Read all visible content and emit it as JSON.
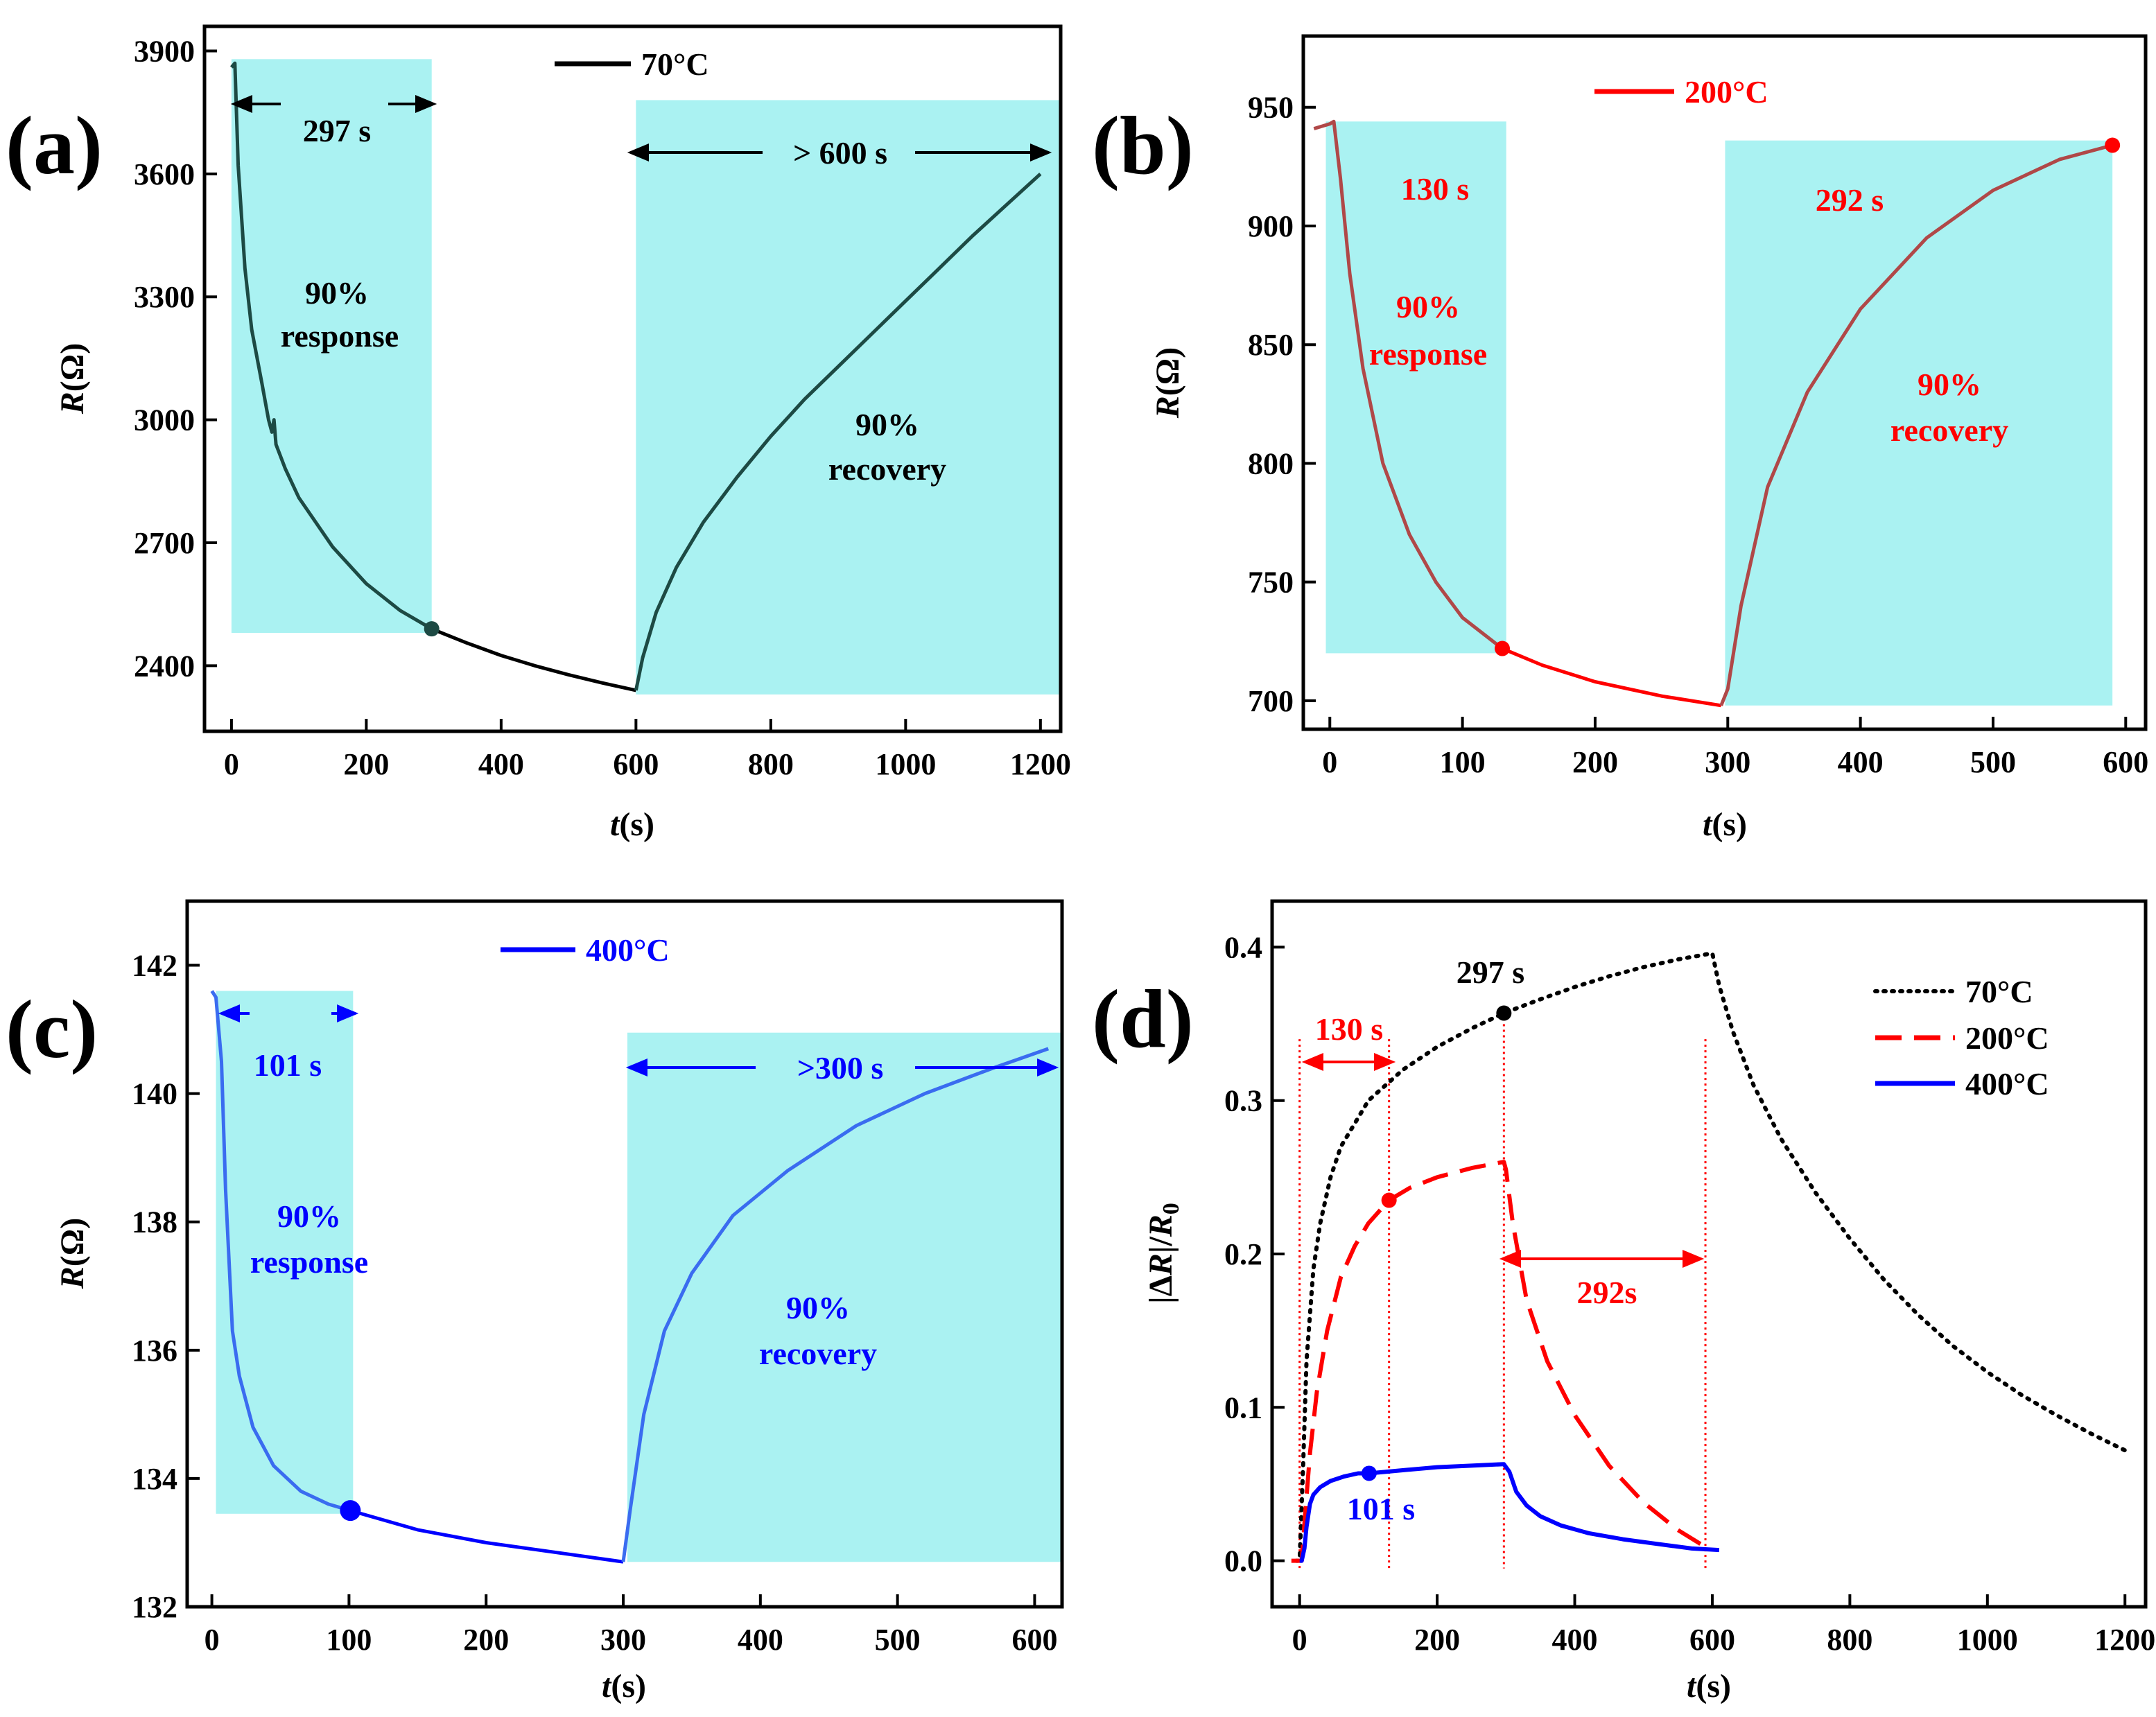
{
  "chart_data": [
    {
      "panel": "(a)",
      "type": "line",
      "legend": "70°C",
      "color": "#000000",
      "curve_color": "#1d4a44",
      "xlabel": "t(s)",
      "ylabel": "R(Ω)",
      "xlim": [
        -40,
        1230
      ],
      "ylim": [
        2240,
        3960
      ],
      "xticks": [
        0,
        200,
        400,
        600,
        800,
        1000,
        1200
      ],
      "yticks": [
        2400,
        2700,
        3000,
        3300,
        3600,
        3900
      ],
      "points_resp": [
        [
          0,
          3860
        ],
        [
          5,
          3870
        ],
        [
          10,
          3620
        ],
        [
          20,
          3370
        ],
        [
          30,
          3220
        ],
        [
          45,
          3090
        ],
        [
          55,
          3000
        ],
        [
          60,
          2970
        ],
        [
          63,
          3000
        ],
        [
          66,
          2940
        ],
        [
          80,
          2880
        ],
        [
          100,
          2810
        ],
        [
          150,
          2690
        ],
        [
          200,
          2600
        ],
        [
          250,
          2535
        ],
        [
          297,
          2490
        ]
      ],
      "points_decay": [
        [
          297,
          2490
        ],
        [
          350,
          2455
        ],
        [
          400,
          2425
        ],
        [
          450,
          2400
        ],
        [
          500,
          2378
        ],
        [
          550,
          2358
        ],
        [
          600,
          2340
        ]
      ],
      "points_rec": [
        [
          600,
          2340
        ],
        [
          610,
          2420
        ],
        [
          630,
          2530
        ],
        [
          660,
          2640
        ],
        [
          700,
          2750
        ],
        [
          750,
          2860
        ],
        [
          800,
          2960
        ],
        [
          850,
          3050
        ],
        [
          900,
          3130
        ],
        [
          950,
          3210
        ],
        [
          1000,
          3290
        ],
        [
          1050,
          3370
        ],
        [
          1100,
          3450
        ],
        [
          1150,
          3525
        ],
        [
          1200,
          3600
        ]
      ],
      "marker": [
        297,
        2490
      ],
      "shade_response": {
        "x": [
          0,
          297
        ],
        "y": [
          2480,
          3880
        ]
      },
      "shade_recovery": {
        "x": [
          600,
          1230
        ],
        "y": [
          2330,
          3780
        ]
      },
      "annotations": {
        "resp_time": "297 s",
        "resp_text": [
          "90%",
          "response"
        ],
        "rec_time": "> 600 s",
        "rec_text": [
          "90%",
          "recovery"
        ]
      }
    },
    {
      "panel": "(b)",
      "type": "line",
      "legend": "200°C",
      "color": "#ff0000",
      "curve_color": "#b04848",
      "xlabel": "t(s)",
      "ylabel": "R(Ω)",
      "xlim": [
        -20,
        615
      ],
      "ylim": [
        688,
        980
      ],
      "xticks": [
        0,
        100,
        200,
        300,
        400,
        500,
        600
      ],
      "yticks": [
        700,
        750,
        800,
        850,
        900,
        950
      ],
      "points_resp": [
        [
          -12,
          941
        ],
        [
          0,
          943
        ],
        [
          3,
          944
        ],
        [
          8,
          920
        ],
        [
          15,
          880
        ],
        [
          25,
          840
        ],
        [
          40,
          800
        ],
        [
          60,
          770
        ],
        [
          80,
          750
        ],
        [
          100,
          735
        ],
        [
          130,
          722
        ]
      ],
      "points_decay": [
        [
          130,
          722
        ],
        [
          160,
          715
        ],
        [
          200,
          708
        ],
        [
          250,
          702
        ],
        [
          295,
          698
        ]
      ],
      "points_rec": [
        [
          295,
          698
        ],
        [
          300,
          705
        ],
        [
          310,
          740
        ],
        [
          330,
          790
        ],
        [
          360,
          830
        ],
        [
          400,
          865
        ],
        [
          450,
          895
        ],
        [
          500,
          915
        ],
        [
          550,
          928
        ],
        [
          590,
          934
        ]
      ],
      "marker": [
        130,
        722
      ],
      "marker2": [
        590,
        934
      ],
      "shade_response": {
        "x": [
          -3,
          133
        ],
        "y": [
          720,
          944
        ]
      },
      "shade_recovery": {
        "x": [
          298,
          590
        ],
        "y": [
          698,
          936
        ]
      },
      "annotations": {
        "resp_time": "130 s",
        "resp_text": [
          "90%",
          "response"
        ],
        "rec_time": "292 s",
        "rec_text": [
          "90%",
          "recovery"
        ]
      }
    },
    {
      "panel": "(c)",
      "type": "line",
      "legend": "400°C",
      "color": "#0000ff",
      "curve_color": "#3a6cf0",
      "xlabel": "t(s)",
      "ylabel": "R(Ω)",
      "xlim": [
        -18,
        620
      ],
      "ylim": [
        132,
        143
      ],
      "xticks": [
        0,
        100,
        200,
        300,
        400,
        500,
        600
      ],
      "yticks": [
        132,
        134,
        136,
        138,
        140,
        142
      ],
      "points_resp": [
        [
          0,
          141.6
        ],
        [
          3,
          141.5
        ],
        [
          7,
          140.5
        ],
        [
          10,
          138.5
        ],
        [
          15,
          136.3
        ],
        [
          20,
          135.6
        ],
        [
          30,
          134.8
        ],
        [
          45,
          134.2
        ],
        [
          65,
          133.8
        ],
        [
          85,
          133.6
        ],
        [
          101,
          133.5
        ]
      ],
      "points_decay": [
        [
          101,
          133.5
        ],
        [
          150,
          133.2
        ],
        [
          200,
          133.0
        ],
        [
          250,
          132.85
        ],
        [
          300,
          132.7
        ]
      ],
      "points_rec": [
        [
          300,
          132.7
        ],
        [
          305,
          133.5
        ],
        [
          315,
          135.0
        ],
        [
          330,
          136.3
        ],
        [
          350,
          137.2
        ],
        [
          380,
          138.1
        ],
        [
          420,
          138.8
        ],
        [
          470,
          139.5
        ],
        [
          520,
          140.0
        ],
        [
          570,
          140.4
        ],
        [
          610,
          140.7
        ]
      ],
      "marker": [
        101,
        133.5
      ],
      "shade_response": {
        "x": [
          3,
          103
        ],
        "y": [
          133.45,
          141.6
        ]
      },
      "shade_recovery": {
        "x": [
          303,
          620
        ],
        "y": [
          132.7,
          140.95
        ]
      },
      "annotations": {
        "resp_time": "101 s",
        "resp_text": [
          "90%",
          "response"
        ],
        "rec_time": ">300 s",
        "rec_text": [
          "90%",
          "recovery"
        ]
      }
    },
    {
      "panel": "(d)",
      "type": "line",
      "xlabel": "t(s)",
      "ylabel": "|ΔR|/R0",
      "xlim": [
        -40,
        1230
      ],
      "ylim": [
        -0.03,
        0.43
      ],
      "xticks": [
        0,
        200,
        400,
        600,
        800,
        1000,
        1200
      ],
      "yticks": [
        0.0,
        0.1,
        0.2,
        0.3,
        0.4
      ],
      "series": [
        {
          "name": "70°C",
          "color": "#000000",
          "style": "dotted",
          "points": [
            [
              -5,
              0.0
            ],
            [
              0,
              0.0
            ],
            [
              5,
              0.06
            ],
            [
              10,
              0.13
            ],
            [
              20,
              0.19
            ],
            [
              30,
              0.22
            ],
            [
              45,
              0.25
            ],
            [
              60,
              0.27
            ],
            [
              80,
              0.285
            ],
            [
              100,
              0.3
            ],
            [
              150,
              0.32
            ],
            [
              200,
              0.335
            ],
            [
              250,
              0.347
            ],
            [
              297,
              0.357
            ],
            [
              350,
              0.366
            ],
            [
              400,
              0.374
            ],
            [
              450,
              0.381
            ],
            [
              500,
              0.387
            ],
            [
              550,
              0.392
            ],
            [
              600,
              0.396
            ],
            [
              610,
              0.375
            ],
            [
              630,
              0.345
            ],
            [
              660,
              0.31
            ],
            [
              700,
              0.275
            ],
            [
              750,
              0.24
            ],
            [
              800,
              0.21
            ],
            [
              850,
              0.183
            ],
            [
              900,
              0.16
            ],
            [
              950,
              0.14
            ],
            [
              1000,
              0.123
            ],
            [
              1050,
              0.108
            ],
            [
              1100,
              0.095
            ],
            [
              1150,
              0.083
            ],
            [
              1200,
              0.072
            ]
          ],
          "marker": [
            297,
            0.357
          ]
        },
        {
          "name": "200°C",
          "color": "#ff0000",
          "style": "dashed",
          "points": [
            [
              -12,
              0.0
            ],
            [
              0,
              0.0
            ],
            [
              3,
              0.0
            ],
            [
              8,
              0.03
            ],
            [
              15,
              0.07
            ],
            [
              25,
              0.11
            ],
            [
              40,
              0.15
            ],
            [
              60,
              0.185
            ],
            [
              80,
              0.205
            ],
            [
              100,
              0.22
            ],
            [
              130,
              0.235
            ],
            [
              160,
              0.243
            ],
            [
              200,
              0.25
            ],
            [
              250,
              0.256
            ],
            [
              297,
              0.26
            ],
            [
              300,
              0.255
            ],
            [
              310,
              0.22
            ],
            [
              330,
              0.17
            ],
            [
              360,
              0.13
            ],
            [
              400,
              0.095
            ],
            [
              450,
              0.062
            ],
            [
              500,
              0.038
            ],
            [
              550,
              0.02
            ],
            [
              590,
              0.009
            ]
          ],
          "marker": [
            130,
            0.235
          ]
        },
        {
          "name": "400°C",
          "color": "#0000ff",
          "style": "solid",
          "points": [
            [
              0,
              0.0
            ],
            [
              3,
              0.0
            ],
            [
              7,
              0.008
            ],
            [
              10,
              0.022
            ],
            [
              15,
              0.037
            ],
            [
              20,
              0.043
            ],
            [
              30,
              0.048
            ],
            [
              45,
              0.052
            ],
            [
              65,
              0.055
            ],
            [
              85,
              0.057
            ],
            [
              101,
              0.057
            ],
            [
              150,
              0.059
            ],
            [
              200,
              0.061
            ],
            [
              250,
              0.062
            ],
            [
              297,
              0.063
            ],
            [
              305,
              0.058
            ],
            [
              315,
              0.045
            ],
            [
              330,
              0.036
            ],
            [
              350,
              0.029
            ],
            [
              380,
              0.023
            ],
            [
              420,
              0.018
            ],
            [
              470,
              0.014
            ],
            [
              520,
              0.011
            ],
            [
              570,
              0.008
            ],
            [
              610,
              0.007
            ]
          ],
          "marker": [
            101,
            0.057
          ]
        }
      ],
      "vlines": [
        0,
        130,
        297,
        590
      ],
      "annotations": {
        "t70": "297 s",
        "t200_resp": "130 s",
        "t200_rec": "292s",
        "t400": "101 s"
      }
    }
  ]
}
